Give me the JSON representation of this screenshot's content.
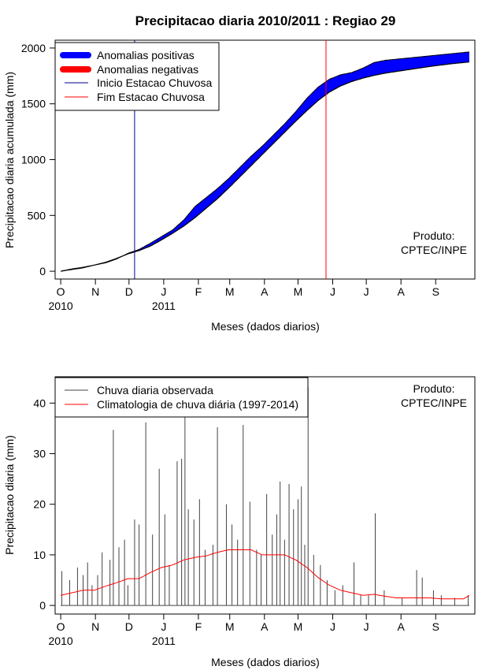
{
  "chart_data": [
    {
      "type": "area",
      "title": "Precipitacao diaria 2010/2011 : Regiao 29",
      "xlabel": "Meses (dados diarios)",
      "ylabel": "Precipitacao diaria acumulada (mm)",
      "xlim_days": [
        -5,
        370
      ],
      "ylim": [
        -70,
        2070
      ],
      "yticks": [
        0,
        500,
        1000,
        1500,
        2000
      ],
      "month_ticks": [
        {
          "label": "O",
          "day": 0
        },
        {
          "label": "N",
          "day": 31
        },
        {
          "label": "D",
          "day": 61
        },
        {
          "label": "J",
          "day": 92
        },
        {
          "label": "F",
          "day": 123
        },
        {
          "label": "M",
          "day": 151
        },
        {
          "label": "A",
          "day": 182
        },
        {
          "label": "M",
          "day": 212
        },
        {
          "label": "J",
          "day": 243
        },
        {
          "label": "J",
          "day": 273
        },
        {
          "label": "A",
          "day": 304
        },
        {
          "label": "S",
          "day": 335
        }
      ],
      "year_labels": [
        {
          "label": "2010",
          "day": 0
        },
        {
          "label": "2011",
          "day": 92
        }
      ],
      "climatology_cumulative": {
        "day": [
          0,
          10,
          20,
          30,
          40,
          50,
          60,
          70,
          80,
          90,
          100,
          110,
          120,
          130,
          140,
          150,
          160,
          170,
          180,
          190,
          200,
          210,
          220,
          230,
          240,
          250,
          260,
          270,
          280,
          290,
          300,
          310,
          320,
          330,
          340,
          350,
          360,
          365
        ],
        "mm": [
          0,
          20,
          35,
          55,
          80,
          115,
          155,
          185,
          225,
          280,
          340,
          405,
          480,
          565,
          650,
          745,
          845,
          945,
          1045,
          1145,
          1245,
          1345,
          1440,
          1530,
          1605,
          1660,
          1700,
          1730,
          1755,
          1775,
          1790,
          1805,
          1820,
          1835,
          1848,
          1860,
          1870,
          1875
        ]
      },
      "observed_cumulative": {
        "day": [
          0,
          10,
          20,
          30,
          40,
          50,
          60,
          70,
          80,
          90,
          100,
          110,
          120,
          130,
          140,
          150,
          160,
          170,
          180,
          190,
          200,
          210,
          220,
          230,
          240,
          250,
          260,
          270,
          280,
          290,
          300,
          310,
          320,
          330,
          340,
          350,
          360,
          365
        ],
        "mm": [
          0,
          15,
          30,
          55,
          75,
          110,
          160,
          195,
          250,
          310,
          370,
          460,
          580,
          660,
          740,
          830,
          930,
          1030,
          1120,
          1220,
          1320,
          1430,
          1550,
          1650,
          1720,
          1760,
          1780,
          1820,
          1870,
          1890,
          1900,
          1910,
          1920,
          1930,
          1940,
          1950,
          1960,
          1965
        ]
      },
      "vertical_lines": [
        {
          "name": "Inicio Estacao Chuvosa",
          "day": 66,
          "color": "#00008b"
        },
        {
          "name": "Fim Estacao Chuvosa",
          "day": 237,
          "color": "#ff0000"
        }
      ],
      "legend": [
        {
          "label": "Anomalias positivas",
          "color": "#0000ff",
          "kind": "thick"
        },
        {
          "label": "Anomalias negativas",
          "color": "#ff0000",
          "kind": "thick"
        },
        {
          "label": "Inicio Estacao Chuvosa",
          "color": "#00008b",
          "kind": "thin"
        },
        {
          "label": "Fim Estacao Chuvosa",
          "color": "#ff0000",
          "kind": "thin"
        }
      ],
      "credit": [
        "Produto:",
        "CPTEC/INPE"
      ],
      "colors": {
        "positive": "#0000ff",
        "negative": "#ff0000",
        "line": "#000000"
      }
    },
    {
      "type": "bar",
      "xlabel": "Meses (dados diarios)",
      "ylabel": "Precipitacao diaria (mm)",
      "xlim_days": [
        -5,
        370
      ],
      "ylim": [
        -1.7,
        45.2
      ],
      "yticks": [
        0,
        10,
        20,
        30,
        40
      ],
      "month_ticks": [
        {
          "label": "O",
          "day": 0
        },
        {
          "label": "N",
          "day": 31
        },
        {
          "label": "D",
          "day": 61
        },
        {
          "label": "J",
          "day": 92
        },
        {
          "label": "F",
          "day": 123
        },
        {
          "label": "M",
          "day": 151
        },
        {
          "label": "A",
          "day": 182
        },
        {
          "label": "M",
          "day": 212
        },
        {
          "label": "J",
          "day": 243
        },
        {
          "label": "J",
          "day": 273
        },
        {
          "label": "A",
          "day": 304
        },
        {
          "label": "S",
          "day": 335
        }
      ],
      "year_labels": [
        {
          "label": "2010",
          "day": 0
        },
        {
          "label": "2011",
          "day": 92
        }
      ],
      "observed_peaks": [
        {
          "day": 1,
          "mm": 6.8
        },
        {
          "day": 8,
          "mm": 5
        },
        {
          "day": 15,
          "mm": 7.5
        },
        {
          "day": 20,
          "mm": 6
        },
        {
          "day": 24,
          "mm": 8.5
        },
        {
          "day": 28,
          "mm": 4
        },
        {
          "day": 33,
          "mm": 6
        },
        {
          "day": 37,
          "mm": 10.5
        },
        {
          "day": 44,
          "mm": 9
        },
        {
          "day": 47,
          "mm": 34.7
        },
        {
          "day": 52,
          "mm": 11.5
        },
        {
          "day": 57,
          "mm": 13
        },
        {
          "day": 60,
          "mm": 4
        },
        {
          "day": 66,
          "mm": 17
        },
        {
          "day": 70,
          "mm": 16
        },
        {
          "day": 76,
          "mm": 36.2
        },
        {
          "day": 82,
          "mm": 14
        },
        {
          "day": 88,
          "mm": 27
        },
        {
          "day": 93,
          "mm": 18
        },
        {
          "day": 97,
          "mm": 8
        },
        {
          "day": 104,
          "mm": 28.5
        },
        {
          "day": 108,
          "mm": 29
        },
        {
          "day": 111,
          "mm": 37.5
        },
        {
          "day": 114,
          "mm": 19
        },
        {
          "day": 119,
          "mm": 17
        },
        {
          "day": 124,
          "mm": 21
        },
        {
          "day": 129,
          "mm": 11
        },
        {
          "day": 136,
          "mm": 12
        },
        {
          "day": 140,
          "mm": 35.2
        },
        {
          "day": 148,
          "mm": 20
        },
        {
          "day": 153,
          "mm": 16
        },
        {
          "day": 158,
          "mm": 13
        },
        {
          "day": 163,
          "mm": 35.7
        },
        {
          "day": 169,
          "mm": 20.5
        },
        {
          "day": 175,
          "mm": 11
        },
        {
          "day": 179,
          "mm": 10
        },
        {
          "day": 184,
          "mm": 22
        },
        {
          "day": 189,
          "mm": 14
        },
        {
          "day": 193,
          "mm": 18
        },
        {
          "day": 196,
          "mm": 24.5
        },
        {
          "day": 200,
          "mm": 13
        },
        {
          "day": 204,
          "mm": 24
        },
        {
          "day": 208,
          "mm": 19
        },
        {
          "day": 212,
          "mm": 21
        },
        {
          "day": 215,
          "mm": 23.5
        },
        {
          "day": 218,
          "mm": 12
        },
        {
          "day": 221,
          "mm": 43.1
        },
        {
          "day": 226,
          "mm": 10
        },
        {
          "day": 232,
          "mm": 8
        },
        {
          "day": 238,
          "mm": 5
        },
        {
          "day": 245,
          "mm": 3
        },
        {
          "day": 252,
          "mm": 4
        },
        {
          "day": 262,
          "mm": 8.5
        },
        {
          "day": 268,
          "mm": 2
        },
        {
          "day": 275,
          "mm": 2
        },
        {
          "day": 281,
          "mm": 18.2
        },
        {
          "day": 289,
          "mm": 3
        },
        {
          "day": 305,
          "mm": 1.5
        },
        {
          "day": 318,
          "mm": 7
        },
        {
          "day": 323,
          "mm": 5.5
        },
        {
          "day": 333,
          "mm": 3
        },
        {
          "day": 340,
          "mm": 2
        },
        {
          "day": 352,
          "mm": 1.5
        },
        {
          "day": 364,
          "mm": 2
        }
      ],
      "climatology_line": {
        "day": [
          0,
          10,
          20,
          30,
          40,
          50,
          60,
          70,
          80,
          90,
          100,
          110,
          120,
          130,
          140,
          150,
          160,
          170,
          180,
          190,
          200,
          210,
          220,
          230,
          240,
          250,
          260,
          270,
          280,
          290,
          300,
          310,
          320,
          330,
          340,
          350,
          360,
          365
        ],
        "mm": [
          2,
          2.5,
          3,
          3,
          3.8,
          4.5,
          5.3,
          5.3,
          6.5,
          7.5,
          8,
          9,
          9.5,
          9.8,
          10.5,
          11,
          11,
          11,
          10,
          10,
          10,
          9,
          7.5,
          5.5,
          4,
          3,
          2.5,
          2,
          2.2,
          1.8,
          1.5,
          1.5,
          1.5,
          1.5,
          1.3,
          1.3,
          1.3,
          2
        ]
      },
      "legend": [
        {
          "label": "Chuva diaria observada",
          "color": "#444444"
        },
        {
          "label": "Climatologia de chuva diária (1997-2014)",
          "color": "#ff0000"
        }
      ],
      "credit": [
        "Produto:",
        "CPTEC/INPE"
      ],
      "colors": {
        "observed": "#444444",
        "climatology": "#ff0000"
      }
    }
  ]
}
